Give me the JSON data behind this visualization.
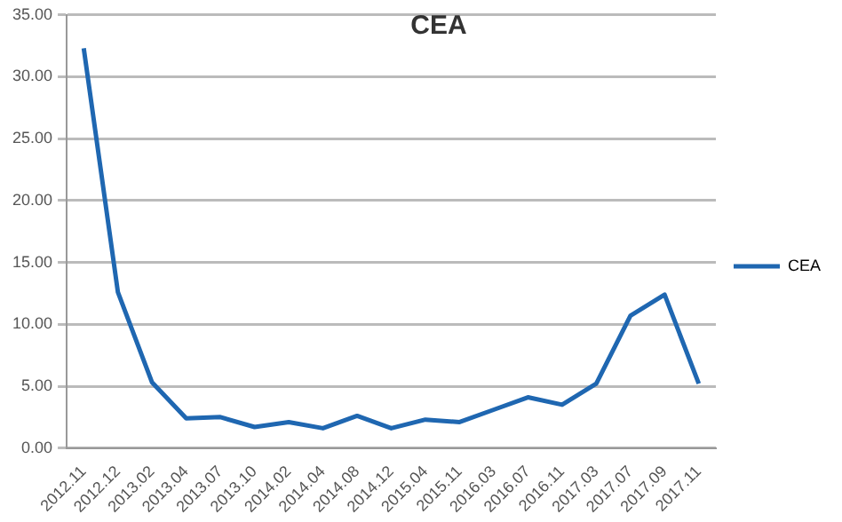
{
  "chart_data": {
    "type": "line",
    "title": "CEA",
    "categories": [
      "2012.11",
      "2012.12",
      "2013.02",
      "2013.04",
      "2013.07",
      "2013.10",
      "2014.02",
      "2014.04",
      "2014.08",
      "2014.12",
      "2015.04",
      "2015.11",
      "2016.03",
      "2016.07",
      "2016.11",
      "2017.03",
      "2017.07",
      "2017.09",
      "2017.11"
    ],
    "series": [
      {
        "name": "CEA",
        "color": "#1f67b1",
        "values": [
          32.3,
          12.6,
          5.3,
          2.4,
          2.5,
          1.7,
          2.1,
          1.6,
          2.6,
          1.6,
          2.3,
          2.1,
          3.1,
          4.1,
          3.5,
          5.2,
          10.7,
          12.4,
          5.2
        ]
      }
    ],
    "ylim": [
      0,
      35
    ],
    "yticks": [
      {
        "value": 0,
        "label": "0.00"
      },
      {
        "value": 5,
        "label": "5.00"
      },
      {
        "value": 10,
        "label": "10.00"
      },
      {
        "value": 15,
        "label": "15.00"
      },
      {
        "value": 20,
        "label": "20.00"
      },
      {
        "value": 25,
        "label": "25.00"
      },
      {
        "value": 30,
        "label": "30.00"
      },
      {
        "value": 35,
        "label": "35.00"
      }
    ],
    "grid": "y",
    "legend": "right",
    "marker": "none",
    "line_style": "solid"
  }
}
